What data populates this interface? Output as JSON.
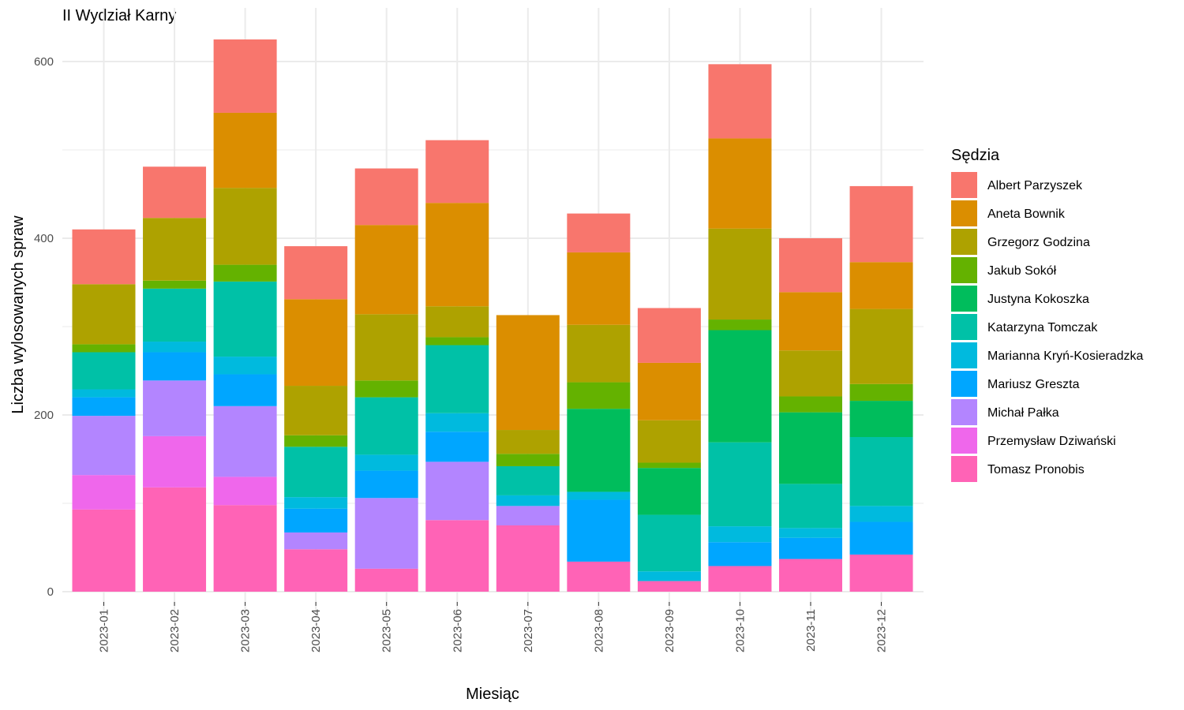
{
  "chart_data": {
    "type": "bar",
    "stacked": true,
    "title": "II Wydział Karny",
    "xlabel": "Miesiąc",
    "ylabel": "Liczba wylosowanych spraw",
    "ylim": [
      0,
      650
    ],
    "yticks": [
      0,
      200,
      400,
      600
    ],
    "grid": true,
    "legend_title": "Sędzia",
    "legend_position": "right",
    "categories": [
      "2023-01",
      "2023-02",
      "2023-03",
      "2023-04",
      "2023-05",
      "2023-06",
      "2023-07",
      "2023-08",
      "2023-09",
      "2023-10",
      "2023-11",
      "2023-12"
    ],
    "series": [
      {
        "name": "Albert Parzyszek",
        "color": "#F8766D",
        "values": [
          62,
          58,
          83,
          60,
          64,
          71,
          0,
          44,
          62,
          84,
          61,
          86
        ]
      },
      {
        "name": "Aneta Bownik",
        "color": "#DB8E00",
        "values": [
          0,
          0,
          85,
          98,
          101,
          117,
          130,
          82,
          65,
          102,
          66,
          53
        ]
      },
      {
        "name": "Grzegorz Godzina",
        "color": "#AEA200",
        "values": [
          68,
          71,
          87,
          56,
          75,
          35,
          27,
          65,
          48,
          103,
          52,
          85
        ]
      },
      {
        "name": "Jakub Sokół",
        "color": "#64B200",
        "values": [
          9,
          9,
          19,
          13,
          19,
          9,
          14,
          30,
          6,
          12,
          18,
          19
        ]
      },
      {
        "name": "Justyna Kokoszka",
        "color": "#00BD5C",
        "values": [
          0,
          0,
          0,
          0,
          0,
          0,
          0,
          94,
          53,
          127,
          81,
          41
        ]
      },
      {
        "name": "Katarzyna Tomczak",
        "color": "#00C1A7",
        "values": [
          42,
          60,
          85,
          57,
          65,
          77,
          33,
          0,
          64,
          95,
          50,
          78
        ]
      },
      {
        "name": "Marianna Kryń-Kosieradzka",
        "color": "#00BADE",
        "values": [
          9,
          12,
          20,
          13,
          18,
          21,
          12,
          9,
          11,
          18,
          11,
          18
        ]
      },
      {
        "name": "Mariusz Greszta",
        "color": "#00A6FF",
        "values": [
          21,
          32,
          36,
          27,
          31,
          34,
          0,
          70,
          0,
          27,
          24,
          37
        ]
      },
      {
        "name": "Michał Pałka",
        "color": "#B385FF",
        "values": [
          67,
          63,
          80,
          19,
          80,
          66,
          22,
          0,
          0,
          0,
          0,
          0
        ]
      },
      {
        "name": "Przemysław Dziwański",
        "color": "#EF67EB",
        "values": [
          39,
          58,
          32,
          0,
          0,
          0,
          0,
          0,
          0,
          0,
          0,
          0
        ]
      },
      {
        "name": "Tomasz Pronobis",
        "color": "#FF63B6",
        "values": [
          93,
          118,
          98,
          48,
          26,
          81,
          75,
          34,
          12,
          29,
          37,
          42
        ]
      }
    ]
  }
}
